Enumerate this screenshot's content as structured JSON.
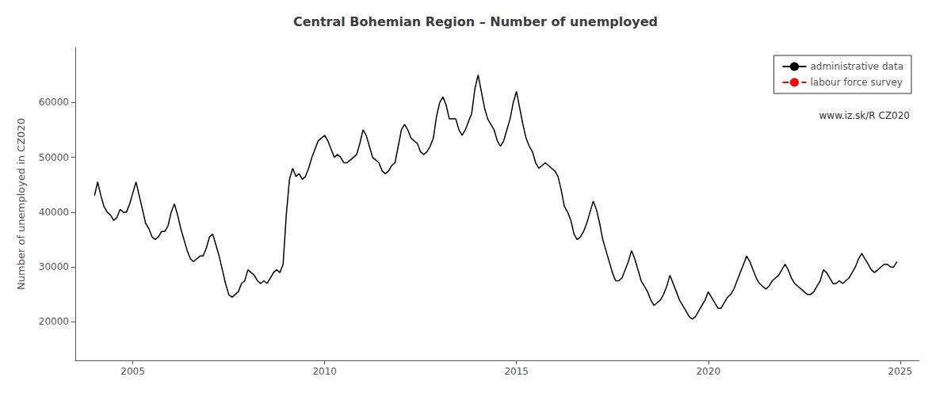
{
  "chart_data": {
    "type": "line",
    "title": "Central Bohemian Region – Number of unemployed",
    "ylabel": "Number of unemployed in CZ020",
    "xlim": [
      2003.5,
      2025.5
    ],
    "ylim": [
      13000,
      70000
    ],
    "xticks": [
      2005,
      2010,
      2015,
      2020,
      2025
    ],
    "yticks": [
      20000,
      30000,
      40000,
      50000,
      60000
    ],
    "grid": false,
    "legend": "upper right",
    "annotations": [
      "www.iz.sk/R CZ020"
    ],
    "x": [
      2004.0,
      2004.083,
      2004.167,
      2004.25,
      2004.333,
      2004.417,
      2004.5,
      2004.583,
      2004.667,
      2004.75,
      2004.833,
      2004.917,
      2005.0,
      2005.083,
      2005.167,
      2005.25,
      2005.333,
      2005.417,
      2005.5,
      2005.583,
      2005.667,
      2005.75,
      2005.833,
      2005.917,
      2006.0,
      2006.083,
      2006.167,
      2006.25,
      2006.333,
      2006.417,
      2006.5,
      2006.583,
      2006.667,
      2006.75,
      2006.833,
      2006.917,
      2007.0,
      2007.083,
      2007.167,
      2007.25,
      2007.333,
      2007.417,
      2007.5,
      2007.583,
      2007.667,
      2007.75,
      2007.833,
      2007.917,
      2008.0,
      2008.083,
      2008.167,
      2008.25,
      2008.333,
      2008.417,
      2008.5,
      2008.583,
      2008.667,
      2008.75,
      2008.833,
      2008.917,
      2009.0,
      2009.083,
      2009.167,
      2009.25,
      2009.333,
      2009.417,
      2009.5,
      2009.583,
      2009.667,
      2009.75,
      2009.833,
      2009.917,
      2010.0,
      2010.083,
      2010.167,
      2010.25,
      2010.333,
      2010.417,
      2010.5,
      2010.583,
      2010.667,
      2010.75,
      2010.833,
      2010.917,
      2011.0,
      2011.083,
      2011.167,
      2011.25,
      2011.333,
      2011.417,
      2011.5,
      2011.583,
      2011.667,
      2011.75,
      2011.833,
      2011.917,
      2012.0,
      2012.083,
      2012.167,
      2012.25,
      2012.333,
      2012.417,
      2012.5,
      2012.583,
      2012.667,
      2012.75,
      2012.833,
      2012.917,
      2013.0,
      2013.083,
      2013.167,
      2013.25,
      2013.333,
      2013.417,
      2013.5,
      2013.583,
      2013.667,
      2013.75,
      2013.833,
      2013.917,
      2014.0,
      2014.083,
      2014.167,
      2014.25,
      2014.333,
      2014.417,
      2014.5,
      2014.583,
      2014.667,
      2014.75,
      2014.833,
      2014.917,
      2015.0,
      2015.083,
      2015.167,
      2015.25,
      2015.333,
      2015.417,
      2015.5,
      2015.583,
      2015.667,
      2015.75,
      2015.833,
      2015.917,
      2016.0,
      2016.083,
      2016.167,
      2016.25,
      2016.333,
      2016.417,
      2016.5,
      2016.583,
      2016.667,
      2016.75,
      2016.833,
      2016.917,
      2017.0,
      2017.083,
      2017.167,
      2017.25,
      2017.333,
      2017.417,
      2017.5,
      2017.583,
      2017.667,
      2017.75,
      2017.833,
      2017.917,
      2018.0,
      2018.083,
      2018.167,
      2018.25,
      2018.333,
      2018.417,
      2018.5,
      2018.583,
      2018.667,
      2018.75,
      2018.833,
      2018.917,
      2019.0,
      2019.083,
      2019.167,
      2019.25,
      2019.333,
      2019.417,
      2019.5,
      2019.583,
      2019.667,
      2019.75,
      2019.833,
      2019.917,
      2020.0,
      2020.083,
      2020.167,
      2020.25,
      2020.333,
      2020.417,
      2020.5,
      2020.583,
      2020.667,
      2020.75,
      2020.833,
      2020.917,
      2021.0,
      2021.083,
      2021.167,
      2021.25,
      2021.333,
      2021.417,
      2021.5,
      2021.583,
      2021.667,
      2021.75,
      2021.833,
      2021.917,
      2022.0,
      2022.083,
      2022.167,
      2022.25,
      2022.333,
      2022.417,
      2022.5,
      2022.583,
      2022.667,
      2022.75,
      2022.833,
      2022.917,
      2023.0,
      2023.083,
      2023.167,
      2023.25,
      2023.333,
      2023.417,
      2023.5,
      2023.583,
      2023.667,
      2023.75,
      2023.833,
      2023.917,
      2024.0,
      2024.083,
      2024.167,
      2024.25,
      2024.333,
      2024.417,
      2024.5,
      2024.583,
      2024.667,
      2024.75,
      2024.833,
      2024.917
    ],
    "series": [
      {
        "name": "administrative data",
        "color": "#000000",
        "line_style": "solid",
        "values": [
          43000,
          45500,
          43000,
          41000,
          40000,
          39500,
          38500,
          39000,
          40500,
          40000,
          40000,
          41500,
          43500,
          45500,
          43000,
          40500,
          38000,
          37000,
          35500,
          35000,
          35500,
          36500,
          36500,
          37500,
          40000,
          41500,
          39500,
          37000,
          35000,
          33000,
          31500,
          31000,
          31500,
          32000,
          32000,
          33500,
          35500,
          36000,
          34000,
          32000,
          29500,
          27000,
          25000,
          24500,
          25000,
          25500,
          27000,
          27500,
          29500,
          29000,
          28500,
          27500,
          27000,
          27500,
          27000,
          28000,
          29000,
          29500,
          29000,
          30500,
          39500,
          46000,
          48000,
          46500,
          47000,
          46000,
          46500,
          48000,
          50000,
          51500,
          53000,
          53500,
          54000,
          53000,
          51500,
          50000,
          50500,
          50000,
          49000,
          49000,
          49500,
          50000,
          50500,
          52500,
          55000,
          54000,
          52000,
          50000,
          49500,
          49000,
          47500,
          47000,
          47500,
          48500,
          49000,
          52000,
          55000,
          56000,
          55000,
          53500,
          53000,
          52500,
          51000,
          50500,
          51000,
          52000,
          53500,
          57500,
          60000,
          61000,
          59500,
          57000,
          57000,
          57000,
          55000,
          54000,
          55000,
          56500,
          58000,
          62500,
          65000,
          62000,
          59000,
          57000,
          56000,
          55000,
          53000,
          52000,
          53000,
          55000,
          57000,
          60000,
          62000,
          59000,
          56000,
          53500,
          52000,
          51000,
          49000,
          48000,
          48500,
          49000,
          48500,
          48000,
          47500,
          46500,
          44000,
          41000,
          40000,
          38500,
          36000,
          35000,
          35500,
          36500,
          38000,
          40000,
          42000,
          40500,
          38000,
          35000,
          33000,
          31000,
          29000,
          27500,
          27500,
          28000,
          29500,
          31000,
          33000,
          31500,
          29500,
          27500,
          26500,
          25500,
          24000,
          23000,
          23500,
          24000,
          25000,
          26500,
          28500,
          27000,
          25500,
          24000,
          23000,
          22000,
          21000,
          20500,
          21000,
          22000,
          23000,
          24000,
          25500,
          24500,
          23500,
          22500,
          22500,
          23500,
          24500,
          25000,
          26000,
          27500,
          29000,
          30500,
          32000,
          31000,
          29500,
          28000,
          27000,
          26500,
          26000,
          26500,
          27500,
          28000,
          28500,
          29500,
          30500,
          29500,
          28000,
          27000,
          26500,
          26000,
          25500,
          25000,
          25000,
          25500,
          26500,
          27500,
          29500,
          29000,
          28000,
          27000,
          27000,
          27500,
          27000,
          27500,
          28000,
          29000,
          30000,
          31500,
          32500,
          31500,
          30500,
          29500,
          29000,
          29500,
          30000,
          30500,
          30500,
          30000,
          30000,
          31000
        ]
      },
      {
        "name": "labour force survey",
        "color": "#ff0000",
        "line_style": "dashed",
        "values": [
          null,
          null,
          null,
          null,
          null,
          null,
          null,
          null,
          null,
          null,
          null,
          null,
          null,
          null,
          null,
          null,
          null,
          null,
          null,
          null,
          null,
          null,
          null,
          null,
          null,
          null,
          null,
          null,
          null,
          null,
          null,
          null,
          null,
          null,
          null,
          null,
          null,
          null,
          null,
          null,
          null,
          null,
          null,
          null,
          null,
          null,
          null,
          null,
          null,
          null,
          null,
          null,
          null,
          null,
          null,
          null,
          null,
          null,
          null,
          null,
          null,
          null,
          null,
          null,
          null,
          null,
          null,
          null,
          null,
          null,
          null,
          null,
          null,
          null,
          null,
          null,
          null,
          null,
          null,
          null,
          null,
          null,
          null,
          null,
          null,
          null,
          null,
          null,
          null,
          null,
          null,
          null,
          null,
          null,
          null,
          null,
          null,
          null,
          null,
          null,
          null,
          null,
          null,
          null,
          null,
          null,
          null,
          null,
          null,
          null,
          null,
          null,
          null,
          null,
          null,
          null,
          null,
          null,
          null,
          null,
          null,
          null,
          null,
          null,
          null,
          null,
          null,
          null,
          null,
          null,
          null,
          null,
          null,
          null,
          null,
          null,
          null,
          null,
          null,
          null,
          null,
          null,
          null,
          null,
          null,
          null,
          null,
          null,
          null,
          null,
          null,
          null,
          null,
          null,
          null,
          null,
          null,
          null,
          null,
          null,
          null,
          null,
          null,
          null,
          null,
          null,
          null,
          null,
          null,
          null,
          null,
          null,
          null,
          null,
          null,
          null,
          null,
          null,
          null,
          null,
          null,
          null,
          null,
          null,
          null,
          null,
          null,
          null,
          null,
          null,
          null,
          null,
          null,
          null,
          null,
          null,
          null,
          null,
          null,
          null,
          null,
          null,
          null,
          null,
          null,
          null,
          null,
          null,
          null,
          null,
          null,
          null,
          null,
          null,
          null,
          null,
          null,
          null,
          null,
          null,
          null,
          null,
          null,
          null,
          null,
          null,
          null,
          null,
          null,
          null,
          null,
          null,
          null,
          null,
          null,
          null,
          null,
          null,
          null,
          null,
          null,
          null,
          null,
          null,
          null,
          null,
          null,
          null,
          null,
          null,
          null,
          null
        ]
      }
    ]
  }
}
